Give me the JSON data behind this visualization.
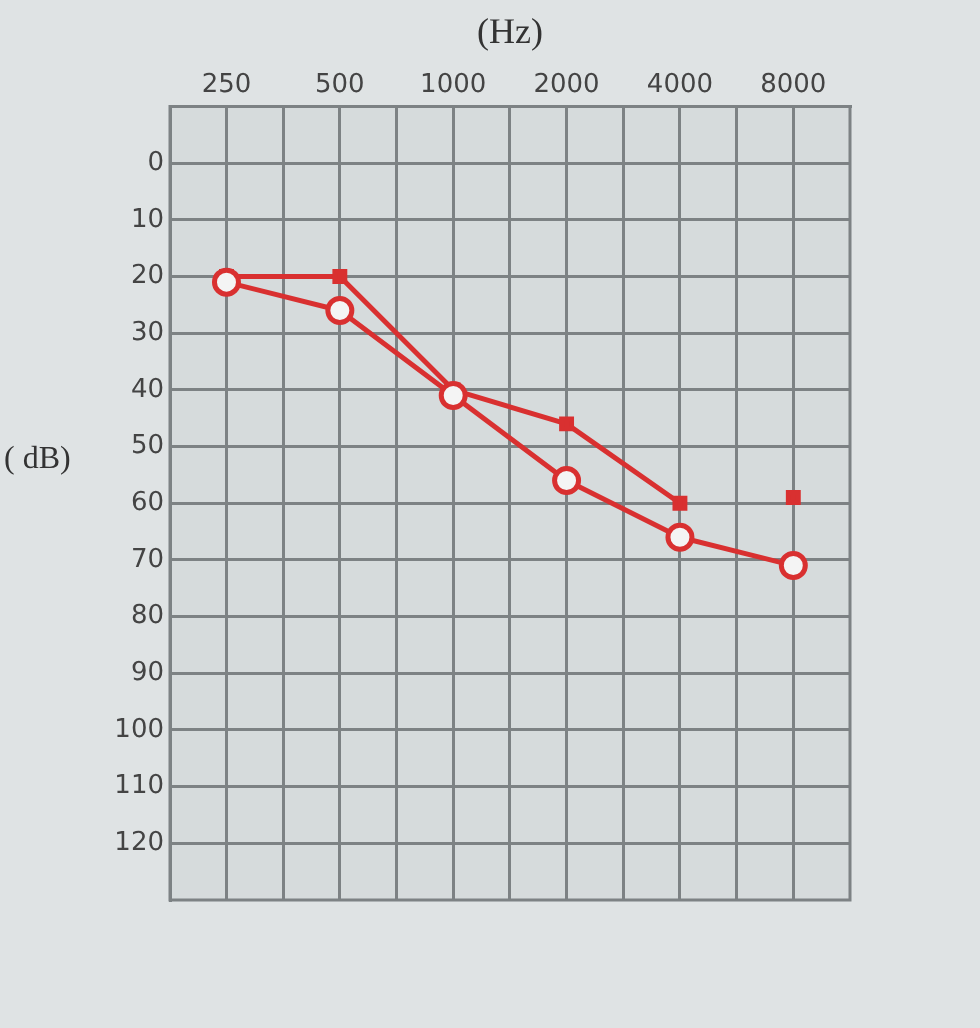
{
  "chart_data": {
    "type": "line",
    "xlabel": "(Hz)",
    "ylabel": "( dB)",
    "xlim": [
      177,
      11314
    ],
    "log": "x",
    "xticks": [
      250,
      {
        "value": 354,
        "label": null
      },
      500,
      {
        "value": 707,
        "label": null
      },
      1000,
      {
        "value": 1414,
        "label": null
      },
      2000,
      {
        "value": 2828,
        "label": null
      },
      4000,
      {
        "value": 5657,
        "label": null
      },
      8000
    ],
    "ylim": [
      130,
      -10
    ],
    "yticks": [
      0,
      10,
      20,
      30,
      40,
      50,
      60,
      70,
      80,
      90,
      100,
      110,
      120
    ],
    "grid": true,
    "legend": false,
    "line_style": "solid",
    "series": [
      {
        "type": "line",
        "color": "#d93030",
        "marker": "circle",
        "x": [
          250,
          500,
          1000,
          2000,
          4000,
          8000
        ],
        "values": [
          21,
          26,
          41,
          56,
          66,
          71
        ]
      },
      {
        "type": "line",
        "color": "#d93030",
        "marker": "square",
        "x": [
          250,
          500,
          1000,
          2000,
          4000
        ],
        "values": [
          20,
          20,
          40,
          46,
          60
        ]
      },
      {
        "type": "scatter",
        "color": "#d93030",
        "marker": "square",
        "x": [
          8000
        ],
        "values": [
          59
        ]
      }
    ]
  }
}
